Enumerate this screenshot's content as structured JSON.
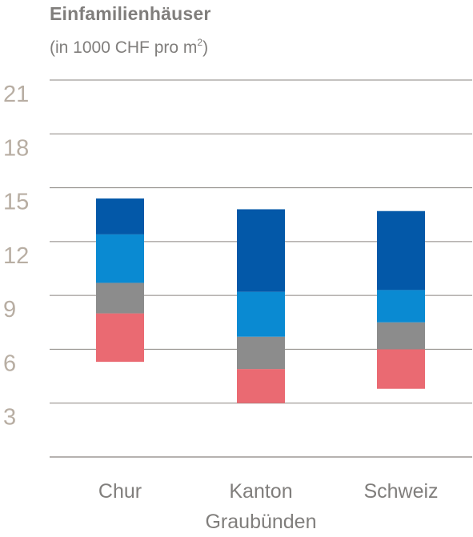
{
  "chart_data": {
    "type": "bar",
    "title": "Einfamilienhäuser",
    "subtitle_prefix": "(in 1000 CHF pro m",
    "subtitle_sup": "2",
    "subtitle_suffix": ")",
    "ylim": [
      0,
      21
    ],
    "yticks": [
      3,
      6,
      9,
      12,
      15,
      18,
      21
    ],
    "categories": [
      {
        "label_lines": [
          "Chur"
        ]
      },
      {
        "label_lines": [
          "Kanton",
          "Graubünden"
        ]
      },
      {
        "label_lines": [
          "Schweiz"
        ]
      }
    ],
    "segment_colors": [
      "#ea6a72",
      "#8c8c8c",
      "#0a8ad2",
      "#0358a8"
    ],
    "stacks": [
      [
        5.3,
        8.0,
        9.7,
        12.4,
        14.4
      ],
      [
        3.0,
        4.9,
        6.7,
        9.2,
        13.8
      ],
      [
        3.8,
        6.0,
        7.5,
        9.3,
        13.7
      ]
    ],
    "grid": true,
    "legend": "none"
  }
}
